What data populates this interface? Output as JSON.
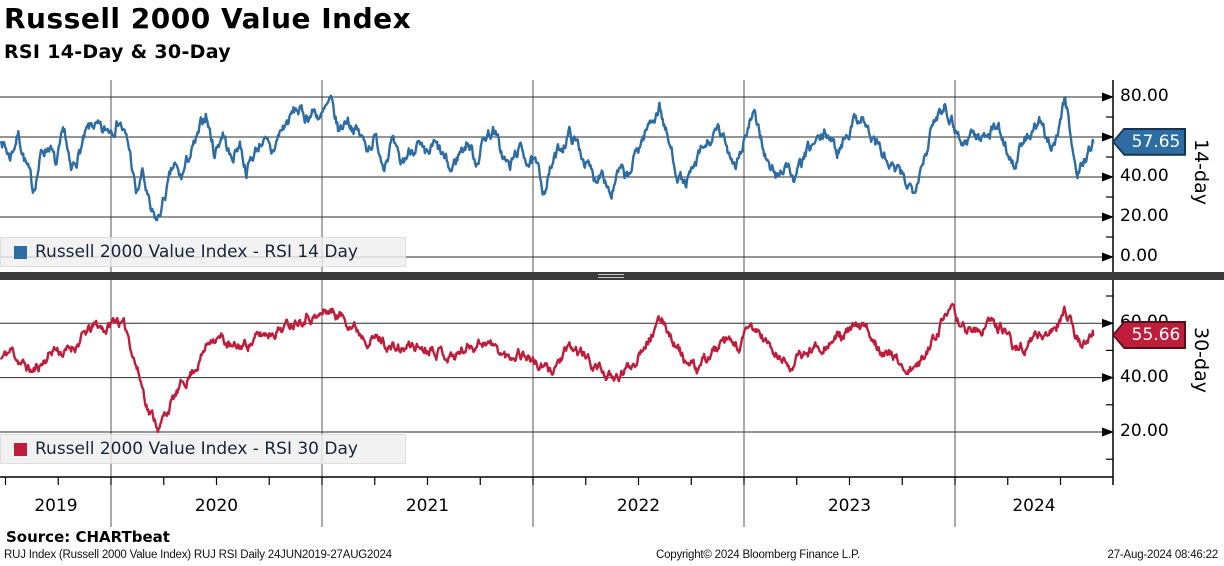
{
  "header": {
    "title": "Russell 2000 Value Index",
    "subtitle": "RSI 14-Day & 30-Day"
  },
  "x_axis": {
    "years": [
      "2019",
      "2020",
      "2021",
      "2022",
      "2023",
      "2024"
    ],
    "year_lines": [
      2020,
      2021,
      2022,
      2023,
      2024
    ],
    "range": [
      2019.48,
      2024.655
    ],
    "quarter_tick_step": 0.25
  },
  "chart_data": [
    {
      "type": "line",
      "panel": "top",
      "title": "Russell 2000 Value Index - RSI 14 Day",
      "legend": "Russell 2000 Value Index - RSI 14 Day",
      "axis_label": "14-day",
      "color": "#2E6DA4",
      "badge_border": "#16344F",
      "last_value": 57.65,
      "ylim": [
        0,
        88
      ],
      "yticks": [
        0,
        20,
        40,
        60,
        80
      ],
      "minor_step": 10,
      "x_range": [
        2019.48,
        2024.655
      ],
      "noise": {
        "seed": 7,
        "amp": 5.2,
        "revert": 0.78
      },
      "anchors": [
        [
          2019.48,
          60
        ],
        [
          2019.52,
          50
        ],
        [
          2019.56,
          62
        ],
        [
          2019.6,
          46
        ],
        [
          2019.63,
          33
        ],
        [
          2019.67,
          52
        ],
        [
          2019.71,
          57
        ],
        [
          2019.74,
          44
        ],
        [
          2019.78,
          62
        ],
        [
          2019.81,
          40
        ],
        [
          2019.84,
          50
        ],
        [
          2019.88,
          60
        ],
        [
          2019.92,
          66
        ],
        [
          2019.96,
          60
        ],
        [
          2020.0,
          65
        ],
        [
          2020.04,
          70
        ],
        [
          2020.09,
          52
        ],
        [
          2020.12,
          30
        ],
        [
          2020.15,
          42
        ],
        [
          2020.19,
          20
        ],
        [
          2020.22,
          17
        ],
        [
          2020.26,
          32
        ],
        [
          2020.3,
          45
        ],
        [
          2020.33,
          38
        ],
        [
          2020.37,
          50
        ],
        [
          2020.41,
          58
        ],
        [
          2020.45,
          72
        ],
        [
          2020.49,
          52
        ],
        [
          2020.53,
          63
        ],
        [
          2020.57,
          48
        ],
        [
          2020.61,
          58
        ],
        [
          2020.64,
          44
        ],
        [
          2020.68,
          52
        ],
        [
          2020.72,
          60
        ],
        [
          2020.76,
          50
        ],
        [
          2020.8,
          62
        ],
        [
          2020.84,
          68
        ],
        [
          2020.88,
          74
        ],
        [
          2020.92,
          70
        ],
        [
          2020.96,
          73
        ],
        [
          2021.0,
          70
        ],
        [
          2021.04,
          76
        ],
        [
          2021.08,
          62
        ],
        [
          2021.12,
          70
        ],
        [
          2021.16,
          64
        ],
        [
          2021.21,
          55
        ],
        [
          2021.25,
          60
        ],
        [
          2021.29,
          48
        ],
        [
          2021.33,
          58
        ],
        [
          2021.37,
          44
        ],
        [
          2021.41,
          52
        ],
        [
          2021.45,
          58
        ],
        [
          2021.49,
          47
        ],
        [
          2021.53,
          55
        ],
        [
          2021.57,
          50
        ],
        [
          2021.61,
          42
        ],
        [
          2021.65,
          52
        ],
        [
          2021.69,
          58
        ],
        [
          2021.73,
          48
        ],
        [
          2021.77,
          60
        ],
        [
          2021.81,
          64
        ],
        [
          2021.85,
          52
        ],
        [
          2021.89,
          44
        ],
        [
          2021.93,
          54
        ],
        [
          2021.97,
          50
        ],
        [
          2022.01,
          45
        ],
        [
          2022.05,
          34
        ],
        [
          2022.09,
          46
        ],
        [
          2022.13,
          54
        ],
        [
          2022.17,
          62
        ],
        [
          2022.21,
          56
        ],
        [
          2022.25,
          48
        ],
        [
          2022.29,
          38
        ],
        [
          2022.33,
          46
        ],
        [
          2022.37,
          32
        ],
        [
          2022.41,
          42
        ],
        [
          2022.45,
          38
        ],
        [
          2022.49,
          52
        ],
        [
          2022.53,
          62
        ],
        [
          2022.57,
          70
        ],
        [
          2022.6,
          76
        ],
        [
          2022.64,
          58
        ],
        [
          2022.68,
          44
        ],
        [
          2022.72,
          36
        ],
        [
          2022.76,
          42
        ],
        [
          2022.8,
          52
        ],
        [
          2022.84,
          58
        ],
        [
          2022.88,
          62
        ],
        [
          2022.92,
          54
        ],
        [
          2022.96,
          48
        ],
        [
          2023.0,
          58
        ],
        [
          2023.04,
          70
        ],
        [
          2023.08,
          60
        ],
        [
          2023.12,
          44
        ],
        [
          2023.16,
          40
        ],
        [
          2023.2,
          48
        ],
        [
          2023.24,
          38
        ],
        [
          2023.28,
          48
        ],
        [
          2023.32,
          55
        ],
        [
          2023.36,
          58
        ],
        [
          2023.4,
          62
        ],
        [
          2023.44,
          52
        ],
        [
          2023.48,
          62
        ],
        [
          2023.52,
          68
        ],
        [
          2023.56,
          72
        ],
        [
          2023.6,
          60
        ],
        [
          2023.64,
          55
        ],
        [
          2023.68,
          46
        ],
        [
          2023.72,
          42
        ],
        [
          2023.76,
          38
        ],
        [
          2023.8,
          34
        ],
        [
          2023.84,
          48
        ],
        [
          2023.88,
          60
        ],
        [
          2023.92,
          72
        ],
        [
          2023.95,
          78
        ],
        [
          2024.0,
          66
        ],
        [
          2024.04,
          56
        ],
        [
          2024.08,
          63
        ],
        [
          2024.12,
          58
        ],
        [
          2024.16,
          64
        ],
        [
          2024.2,
          66
        ],
        [
          2024.24,
          56
        ],
        [
          2024.28,
          46
        ],
        [
          2024.32,
          56
        ],
        [
          2024.36,
          62
        ],
        [
          2024.4,
          66
        ],
        [
          2024.44,
          56
        ],
        [
          2024.48,
          60
        ],
        [
          2024.52,
          79
        ],
        [
          2024.55,
          62
        ],
        [
          2024.58,
          40
        ],
        [
          2024.61,
          48
        ],
        [
          2024.64,
          55
        ],
        [
          2024.655,
          57.65
        ]
      ]
    },
    {
      "type": "line",
      "panel": "bottom",
      "title": "Russell 2000 Value Index - RSI 30 Day",
      "legend": "Russell 2000 Value Index - RSI 30 Day",
      "axis_label": "30-day",
      "color": "#BE1E3C",
      "badge_border": "#571019",
      "last_value": 55.66,
      "ylim": [
        5,
        75
      ],
      "yticks": [
        20,
        40,
        60
      ],
      "minor_step": 10,
      "x_range": [
        2019.48,
        2024.655
      ],
      "noise": {
        "seed": 11,
        "amp": 3.1,
        "revert": 0.8
      },
      "anchors": [
        [
          2019.48,
          47
        ],
        [
          2019.53,
          50
        ],
        [
          2019.58,
          45
        ],
        [
          2019.63,
          42
        ],
        [
          2019.68,
          46
        ],
        [
          2019.73,
          51
        ],
        [
          2019.78,
          49
        ],
        [
          2019.83,
          52
        ],
        [
          2019.88,
          56
        ],
        [
          2019.93,
          59
        ],
        [
          2019.98,
          58
        ],
        [
          2020.03,
          62
        ],
        [
          2020.08,
          56
        ],
        [
          2020.13,
          42
        ],
        [
          2020.18,
          28
        ],
        [
          2020.23,
          22
        ],
        [
          2020.28,
          30
        ],
        [
          2020.33,
          36
        ],
        [
          2020.38,
          42
        ],
        [
          2020.43,
          48
        ],
        [
          2020.48,
          56
        ],
        [
          2020.53,
          54
        ],
        [
          2020.58,
          50
        ],
        [
          2020.63,
          52
        ],
        [
          2020.68,
          54
        ],
        [
          2020.73,
          56
        ],
        [
          2020.78,
          58
        ],
        [
          2020.83,
          59
        ],
        [
          2020.88,
          62
        ],
        [
          2020.93,
          64
        ],
        [
          2020.98,
          62
        ],
        [
          2021.03,
          65
        ],
        [
          2021.08,
          63
        ],
        [
          2021.13,
          61
        ],
        [
          2021.18,
          57
        ],
        [
          2021.23,
          55
        ],
        [
          2021.28,
          54
        ],
        [
          2021.33,
          51
        ],
        [
          2021.38,
          50
        ],
        [
          2021.43,
          52
        ],
        [
          2021.48,
          51
        ],
        [
          2021.53,
          52
        ],
        [
          2021.58,
          49
        ],
        [
          2021.63,
          48
        ],
        [
          2021.68,
          51
        ],
        [
          2021.73,
          53
        ],
        [
          2021.78,
          54
        ],
        [
          2021.83,
          50
        ],
        [
          2021.88,
          47
        ],
        [
          2021.93,
          50
        ],
        [
          2021.98,
          48
        ],
        [
          2022.03,
          44
        ],
        [
          2022.08,
          42
        ],
        [
          2022.13,
          47
        ],
        [
          2022.18,
          50
        ],
        [
          2022.23,
          49
        ],
        [
          2022.28,
          45
        ],
        [
          2022.33,
          43
        ],
        [
          2022.38,
          38
        ],
        [
          2022.43,
          42
        ],
        [
          2022.48,
          46
        ],
        [
          2022.53,
          54
        ],
        [
          2022.58,
          58
        ],
        [
          2022.62,
          61
        ],
        [
          2022.68,
          52
        ],
        [
          2022.73,
          45
        ],
        [
          2022.78,
          42
        ],
        [
          2022.83,
          48
        ],
        [
          2022.88,
          51
        ],
        [
          2022.93,
          52
        ],
        [
          2022.98,
          51
        ],
        [
          2023.03,
          58
        ],
        [
          2023.08,
          56
        ],
        [
          2023.13,
          50
        ],
        [
          2023.18,
          46
        ],
        [
          2023.23,
          45
        ],
        [
          2023.28,
          48
        ],
        [
          2023.33,
          51
        ],
        [
          2023.38,
          53
        ],
        [
          2023.43,
          54
        ],
        [
          2023.48,
          56
        ],
        [
          2023.53,
          58
        ],
        [
          2023.58,
          57
        ],
        [
          2023.63,
          53
        ],
        [
          2023.68,
          49
        ],
        [
          2023.73,
          46
        ],
        [
          2023.78,
          43
        ],
        [
          2023.83,
          44
        ],
        [
          2023.88,
          52
        ],
        [
          2023.93,
          60
        ],
        [
          2023.98,
          63
        ],
        [
          2024.03,
          60
        ],
        [
          2024.08,
          57
        ],
        [
          2024.13,
          58
        ],
        [
          2024.18,
          60
        ],
        [
          2024.23,
          57
        ],
        [
          2024.28,
          51
        ],
        [
          2024.33,
          52
        ],
        [
          2024.38,
          55
        ],
        [
          2024.43,
          56
        ],
        [
          2024.48,
          58
        ],
        [
          2024.52,
          66
        ],
        [
          2024.56,
          58
        ],
        [
          2024.6,
          52
        ],
        [
          2024.63,
          53
        ],
        [
          2024.655,
          55.66
        ]
      ]
    }
  ],
  "footer": {
    "source": "Source: CHARTbeat",
    "meta_left": "RUJ Index (Russell 2000 Value Index) RUJ RSI  Daily 24JUN2019-27AUG2024",
    "meta_center": "Copyright© 2024 Bloomberg Finance L.P.",
    "meta_right": "27-Aug-2024 08:46:22"
  }
}
